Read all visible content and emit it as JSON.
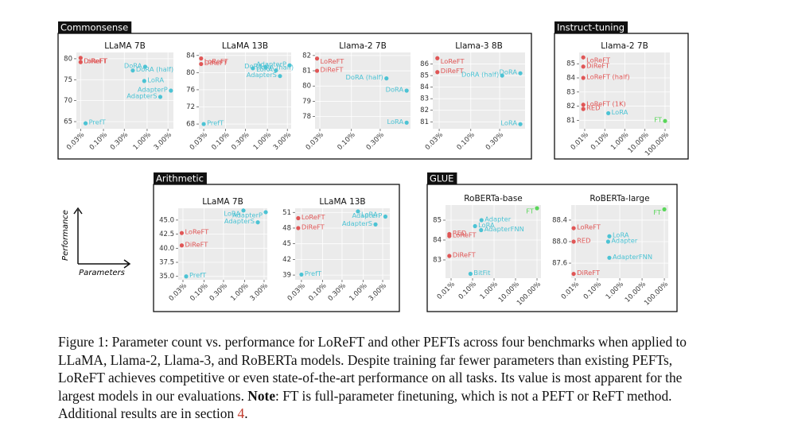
{
  "panels": [
    "Commonsense",
    "Instruct-tuning",
    "Arithmetic",
    "GLUE"
  ],
  "axis_legend": {
    "y": "Performance",
    "x": "Parameters"
  },
  "chart_data": [
    {
      "type": "scatter",
      "title": "LLaMA 7B",
      "xscale": "log",
      "grid": true,
      "xlim": [
        0.024,
        4.0
      ],
      "ylim": [
        63.3,
        81.5
      ],
      "xticks": [
        {
          "value": 0.03,
          "label": "0.03%"
        },
        {
          "value": 0.1,
          "label": "0.10%"
        },
        {
          "value": 0.3,
          "label": "0.30%"
        },
        {
          "value": 1,
          "label": "1.00%"
        },
        {
          "value": 3,
          "label": "3.00%"
        }
      ],
      "yticks": [
        65,
        70,
        75,
        80
      ],
      "points": [
        {
          "name": "LoReFT",
          "x": 0.03,
          "y": 80.2,
          "color": "#e05656"
        },
        {
          "name": "DiReFT",
          "x": 0.03,
          "y": 79.2,
          "color": "#e05656"
        },
        {
          "name": "PrefT",
          "x": 0.039,
          "y": 64.6,
          "color": "#4cc3d4"
        },
        {
          "name": "LoRA",
          "x": 0.86,
          "y": 74.7,
          "color": "#4cc3d4"
        },
        {
          "name": "DoRA (half)",
          "x": 0.47,
          "y": 77.2,
          "color": "#4cc3d4"
        },
        {
          "name": "DoRA",
          "x": 0.9,
          "y": 78.1,
          "color": "#4cc3d4"
        },
        {
          "name": "AdapterP",
          "x": 3.5,
          "y": 72.4,
          "color": "#4cc3d4"
        },
        {
          "name": "AdapterS",
          "x": 2.0,
          "y": 70.9,
          "color": "#4cc3d4"
        }
      ]
    },
    {
      "type": "scatter",
      "title": "LLaMA 13B",
      "xscale": "log",
      "grid": true,
      "xlim": [
        0.023,
        3.7
      ],
      "ylim": [
        66.9,
        84.7
      ],
      "xticks": [
        {
          "value": 0.03,
          "label": "0.03%"
        },
        {
          "value": 0.1,
          "label": "0.10%"
        },
        {
          "value": 0.3,
          "label": "0.30%"
        },
        {
          "value": 1,
          "label": "1.00%"
        },
        {
          "value": 3,
          "label": "3.00%"
        }
      ],
      "yticks": [
        68,
        72,
        76,
        80,
        84
      ],
      "points": [
        {
          "name": "LoReFT",
          "x": 0.026,
          "y": 83.3,
          "color": "#e05656"
        },
        {
          "name": "DiReFT",
          "x": 0.026,
          "y": 82.0,
          "color": "#e05656"
        },
        {
          "name": "PrefT",
          "x": 0.03,
          "y": 68.0,
          "color": "#4cc3d4"
        },
        {
          "name": "DoRA (half)",
          "x": 0.45,
          "y": 81.0,
          "color": "#4cc3d4"
        },
        {
          "name": "DoRA",
          "x": 0.9,
          "y": 81.3,
          "color": "#4cc3d4"
        },
        {
          "name": "LoRA",
          "x": 1.6,
          "y": 80.5,
          "color": "#4cc3d4"
        },
        {
          "name": "AdapterP",
          "x": 3.4,
          "y": 81.7,
          "color": "#4cc3d4"
        },
        {
          "name": "AdapterS",
          "x": 2.0,
          "y": 79.2,
          "color": "#4cc3d4"
        }
      ]
    },
    {
      "type": "scatter",
      "title": "Llama-2 7B",
      "xscale": "log",
      "grid": true,
      "xlim": [
        0.025,
        0.95
      ],
      "ylim": [
        77.2,
        82.2
      ],
      "xticks": [
        {
          "value": 0.03,
          "label": "0.03%"
        },
        {
          "value": 0.1,
          "label": "0.10%"
        },
        {
          "value": 0.3,
          "label": "0.30%"
        }
      ],
      "yticks": [
        78,
        79,
        80,
        81,
        82
      ],
      "points": [
        {
          "name": "LoReFT",
          "x": 0.027,
          "y": 81.8,
          "color": "#e05656"
        },
        {
          "name": "DiReFT",
          "x": 0.027,
          "y": 81.0,
          "color": "#e05656"
        },
        {
          "name": "DoRA (half)",
          "x": 0.38,
          "y": 80.5,
          "color": "#4cc3d4"
        },
        {
          "name": "DoRA",
          "x": 0.82,
          "y": 79.7,
          "color": "#4cc3d4"
        },
        {
          "name": "LoRA",
          "x": 0.82,
          "y": 77.6,
          "color": "#4cc3d4"
        }
      ]
    },
    {
      "type": "scatter",
      "title": "Llama-3 8B",
      "xscale": "log",
      "grid": true,
      "xlim": [
        0.0235,
        0.79
      ],
      "ylim": [
        80.4,
        87.0
      ],
      "xticks": [
        {
          "value": 0.03,
          "label": "0.03%"
        },
        {
          "value": 0.1,
          "label": "0.10%"
        },
        {
          "value": 0.3,
          "label": "0.30%"
        }
      ],
      "yticks": [
        81,
        82,
        83,
        84,
        85,
        86
      ],
      "points": [
        {
          "name": "LoReFT",
          "x": 0.028,
          "y": 86.5,
          "color": "#e05656"
        },
        {
          "name": "DiReFT",
          "x": 0.028,
          "y": 85.3,
          "color": "#e05656"
        },
        {
          "name": "DoRA (half)",
          "x": 0.33,
          "y": 85.0,
          "color": "#4cc3d4"
        },
        {
          "name": "DoRA",
          "x": 0.66,
          "y": 85.2,
          "color": "#4cc3d4"
        },
        {
          "name": "LoRA",
          "x": 0.66,
          "y": 80.8,
          "color": "#4cc3d4"
        }
      ]
    },
    {
      "type": "scatter",
      "title": "Llama-2 7B",
      "xscale": "log",
      "grid": true,
      "xlim": [
        0.0053,
        173
      ],
      "ylim": [
        80.4,
        85.8
      ],
      "xticks": [
        {
          "value": 0.01,
          "label": "0.01%"
        },
        {
          "value": 0.1,
          "label": "0.10%"
        },
        {
          "value": 1,
          "label": "1.00%"
        },
        {
          "value": 10,
          "label": "10.00%"
        },
        {
          "value": 100,
          "label": "100.00%"
        }
      ],
      "yticks": [
        81,
        82,
        83,
        84,
        85
      ],
      "points": [
        {
          "name": "LoReFT",
          "x": 0.0085,
          "y": 85.45,
          "color": "#e05656"
        },
        {
          "name": "DiReFT",
          "x": 0.0085,
          "y": 84.8,
          "color": "#e05656"
        },
        {
          "name": "LoReFT (half)",
          "x": 0.0085,
          "y": 84.0,
          "color": "#e05656"
        },
        {
          "name": "LoReFT (1K)",
          "x": 0.0085,
          "y": 82.1,
          "color": "#e05656"
        },
        {
          "name": "RED",
          "x": 0.0085,
          "y": 81.8,
          "color": "#e05656"
        },
        {
          "name": "LoRA",
          "x": 0.15,
          "y": 81.5,
          "color": "#4cc3d4"
        },
        {
          "name": "FT",
          "x": 100,
          "y": 80.95,
          "color": "#5ad65a"
        }
      ]
    },
    {
      "type": "scatter",
      "title": "LLaMA 7B",
      "xscale": "log",
      "grid": true,
      "xlim": [
        0.0229,
        3.6
      ],
      "ylim": [
        34.4,
        47.1
      ],
      "xticks": [
        {
          "value": 0.03,
          "label": "0.03%"
        },
        {
          "value": 0.1,
          "label": "0.10%"
        },
        {
          "value": 0.3,
          "label": "0.30%"
        },
        {
          "value": 1,
          "label": "1.00%"
        },
        {
          "value": 3,
          "label": "3.00%"
        }
      ],
      "yticks": [
        {
          "value": 35,
          "label": "35.0"
        },
        37.5,
        {
          "value": 40,
          "label": "40.0"
        },
        42.5,
        {
          "value": 45,
          "label": "45.0"
        }
      ],
      "points": [
        {
          "name": "LoReFT",
          "x": 0.028,
          "y": 42.7,
          "color": "#e05656"
        },
        {
          "name": "DiReFT",
          "x": 0.028,
          "y": 40.5,
          "color": "#e05656"
        },
        {
          "name": "PrefT",
          "x": 0.036,
          "y": 35.0,
          "color": "#4cc3d4"
        },
        {
          "name": "LoRA",
          "x": 0.93,
          "y": 46.7,
          "color": "#4cc3d4"
        },
        {
          "name": "AdapterP",
          "x": 3.3,
          "y": 46.4,
          "color": "#4cc3d4"
        },
        {
          "name": "AdapterS",
          "x": 2.1,
          "y": 44.6,
          "color": "#4cc3d4"
        }
      ]
    },
    {
      "type": "scatter",
      "title": "LLaMA 13B",
      "xscale": "log",
      "grid": true,
      "xlim": [
        0.021,
        4.5
      ],
      "ylim": [
        38.1,
        51.8
      ],
      "xticks": [
        {
          "value": 0.03,
          "label": "0.03%"
        },
        {
          "value": 0.1,
          "label": "0.10%"
        },
        {
          "value": 0.3,
          "label": "0.30%"
        },
        {
          "value": 1,
          "label": "1.00%"
        },
        {
          "value": 3,
          "label": "3.00%"
        }
      ],
      "yticks": [
        39,
        42,
        45,
        48,
        51
      ],
      "points": [
        {
          "name": "LoReFT",
          "x": 0.025,
          "y": 49.9,
          "color": "#e05656"
        },
        {
          "name": "DiReFT",
          "x": 0.025,
          "y": 48.0,
          "color": "#e05656"
        },
        {
          "name": "PrefT",
          "x": 0.03,
          "y": 39.1,
          "color": "#4cc3d4"
        },
        {
          "name": "LoRA",
          "x": 0.74,
          "y": 51.2,
          "color": "#4cc3d4"
        },
        {
          "name": "AdapterP",
          "x": 3.5,
          "y": 50.2,
          "color": "#4cc3d4"
        },
        {
          "name": "AdapterS",
          "x": 2.0,
          "y": 48.7,
          "color": "#4cc3d4"
        }
      ]
    },
    {
      "type": "scatter",
      "title": "RoBERTa-base",
      "xscale": "log",
      "grid": true,
      "xlim": [
        0.0055,
        153
      ],
      "ylim": [
        82.08,
        85.76
      ],
      "xticks": [
        {
          "value": 0.01,
          "label": "0.01%"
        },
        {
          "value": 0.1,
          "label": "0.10%"
        },
        {
          "value": 1,
          "label": "1.00%"
        },
        {
          "value": 10,
          "label": "10.00%"
        },
        {
          "value": 100,
          "label": "100.00%"
        }
      ],
      "yticks": [
        83,
        84,
        85
      ],
      "points": [
        {
          "name": "RED",
          "x": 0.0083,
          "y": 84.3,
          "color": "#e05656"
        },
        {
          "name": "LoReFT",
          "x": 0.0083,
          "y": 84.2,
          "color": "#e05656"
        },
        {
          "name": "DiReFT",
          "x": 0.0083,
          "y": 83.2,
          "color": "#e05656"
        },
        {
          "name": "LoRA",
          "x": 0.13,
          "y": 84.7,
          "color": "#4cc3d4"
        },
        {
          "name": "Adapter",
          "x": 0.26,
          "y": 85.0,
          "color": "#4cc3d4"
        },
        {
          "name": "AdapterFNN",
          "x": 0.25,
          "y": 84.5,
          "color": "#4cc3d4"
        },
        {
          "name": "BitFit",
          "x": 0.08,
          "y": 82.3,
          "color": "#4cc3d4"
        },
        {
          "name": "FT",
          "x": 100,
          "y": 85.6,
          "color": "#5ad65a"
        }
      ]
    },
    {
      "type": "scatter",
      "title": "RoBERTa-large",
      "xscale": "log",
      "grid": true,
      "xlim": [
        0.0066,
        150
      ],
      "ylim": [
        87.32,
        88.68
      ],
      "xticks": [
        {
          "value": 0.01,
          "label": "0.01%"
        },
        {
          "value": 0.1,
          "label": "0.10%"
        },
        {
          "value": 1,
          "label": "1.00%"
        },
        {
          "value": 10,
          "label": "10.00%"
        },
        {
          "value": 100,
          "label": "100.00%"
        }
      ],
      "yticks": [
        87.6,
        {
          "value": 88,
          "label": "88.0"
        },
        88.4
      ],
      "points": [
        {
          "name": "LoReFT",
          "x": 0.0085,
          "y": 88.25,
          "color": "#e05656"
        },
        {
          "name": "RED",
          "x": 0.0085,
          "y": 88.0,
          "color": "#e05656"
        },
        {
          "name": "DiReFT",
          "x": 0.0085,
          "y": 87.4,
          "color": "#e05656"
        },
        {
          "name": "LoRA",
          "x": 0.34,
          "y": 88.1,
          "color": "#4cc3d4"
        },
        {
          "name": "Adapter",
          "x": 0.3,
          "y": 88.0,
          "color": "#4cc3d4"
        },
        {
          "name": "AdapterFNN",
          "x": 0.34,
          "y": 87.7,
          "color": "#4cc3d4"
        },
        {
          "name": "FT",
          "x": 100,
          "y": 88.6,
          "color": "#5ad65a"
        }
      ]
    }
  ],
  "caption": {
    "before": "Figure 1: Parameter count vs. performance for LoReFT and other PEFTs across four benchmarks when applied to LLaMA, Llama-2, Llama-3, and RoBERTa models. Despite training far fewer parameters than existing PEFTs, LoReFT achieves competitive or even state-of-the-art performance on all tasks. Its value is most apparent for the largest models in our evaluations. ",
    "bold": "Note",
    "after": ": FT is full-parameter finetuning, which is not a PEFT or ReFT method. Additional results are in section ",
    "ref": "4",
    "end": "."
  }
}
